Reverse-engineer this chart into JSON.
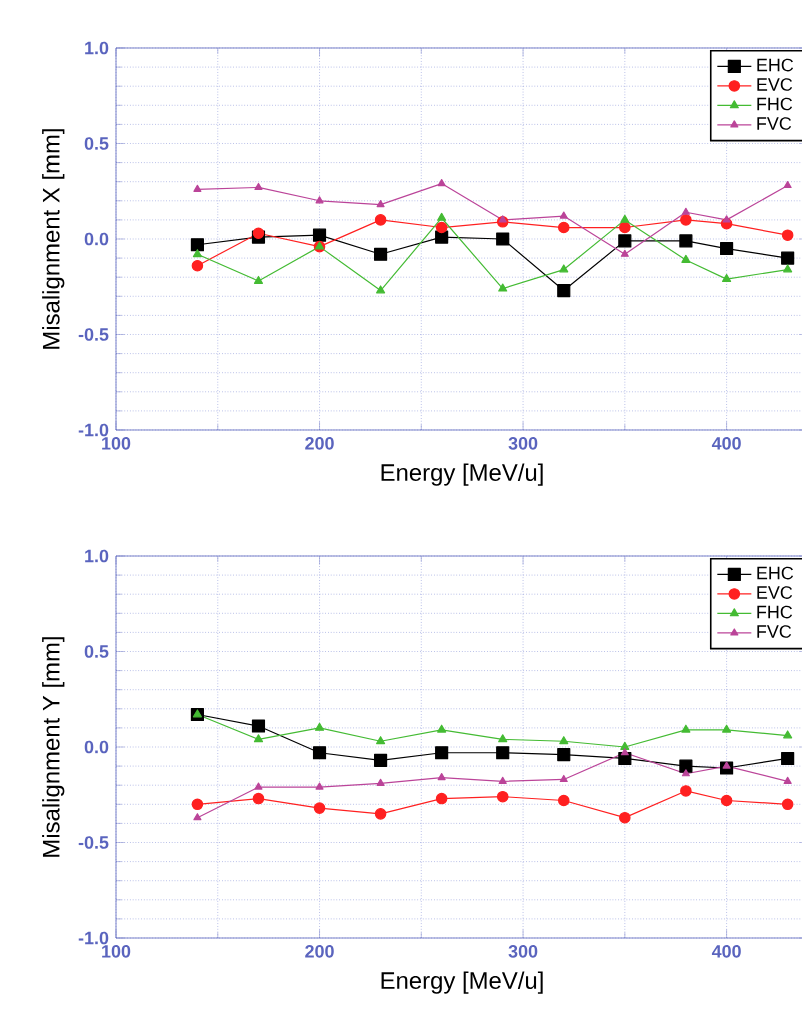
{
  "chart_data": [
    {
      "type": "line",
      "xlabel": "Energy [MeV/u]",
      "ylabel": "Misalignment X [mm]",
      "x": [
        140,
        170,
        200,
        230,
        260,
        290,
        320,
        350,
        380,
        400,
        430
      ],
      "xlim": [
        100,
        440
      ],
      "xticks": [
        100,
        200,
        300,
        400
      ],
      "ylim": [
        -1.0,
        1.0
      ],
      "yticks": [
        {
          "value": -1.0,
          "label": "-1.0"
        },
        {
          "value": -0.5,
          "label": "-0.5"
        },
        {
          "value": 0,
          "label": "0.0"
        },
        {
          "value": 0.5,
          "label": "0.5"
        },
        {
          "value": 1.0,
          "label": "1.0"
        }
      ],
      "grid": true,
      "legend": "top right",
      "line_style": "solid",
      "series": [
        {
          "name": "EHC",
          "color": "#000000",
          "marker": "square",
          "values": [
            -0.03,
            0.01,
            0.02,
            -0.08,
            0.01,
            0.0,
            -0.27,
            -0.01,
            -0.01,
            -0.05,
            -0.1
          ]
        },
        {
          "name": "EVC",
          "color": "#ff2020",
          "marker": "circle",
          "values": [
            -0.14,
            0.03,
            -0.04,
            0.1,
            0.06,
            0.09,
            0.06,
            0.06,
            0.1,
            0.08,
            0.02
          ]
        },
        {
          "name": "FHC",
          "color": "#44bb33",
          "marker": "triangle",
          "values": [
            -0.08,
            -0.22,
            -0.04,
            -0.27,
            0.11,
            -0.26,
            -0.16,
            0.1,
            -0.11,
            -0.21,
            -0.16
          ]
        },
        {
          "name": "FVC",
          "color": "#bb4499",
          "marker": "triangle-down",
          "values": [
            0.26,
            0.27,
            0.2,
            0.18,
            0.29,
            0.1,
            0.12,
            -0.08,
            0.14,
            0.1,
            0.28
          ]
        }
      ]
    },
    {
      "type": "line",
      "xlabel": "Energy [MeV/u]",
      "ylabel": "Misalignment Y [mm]",
      "x": [
        140,
        170,
        200,
        230,
        260,
        290,
        320,
        350,
        380,
        400,
        430
      ],
      "xlim": [
        100,
        440
      ],
      "xticks": [
        100,
        200,
        300,
        400
      ],
      "ylim": [
        -1.0,
        1.0
      ],
      "yticks": [
        {
          "value": -1.0,
          "label": "-1.0"
        },
        {
          "value": -0.5,
          "label": "-0.5"
        },
        {
          "value": 0,
          "label": "0.0"
        },
        {
          "value": 0.5,
          "label": "0.5"
        },
        {
          "value": 1.0,
          "label": "1.0"
        }
      ],
      "grid": true,
      "legend": "top right",
      "line_style": "solid",
      "series": [
        {
          "name": "EHC",
          "color": "#000000",
          "marker": "square",
          "values": [
            0.17,
            0.11,
            -0.03,
            -0.07,
            -0.03,
            -0.03,
            -0.04,
            -0.06,
            -0.1,
            -0.11,
            -0.06
          ]
        },
        {
          "name": "EVC",
          "color": "#ff2020",
          "marker": "circle",
          "values": [
            -0.3,
            -0.27,
            -0.32,
            -0.35,
            -0.27,
            -0.26,
            -0.28,
            -0.37,
            -0.23,
            -0.28,
            -0.3
          ]
        },
        {
          "name": "FHC",
          "color": "#44bb33",
          "marker": "triangle",
          "values": [
            0.17,
            0.04,
            0.1,
            0.03,
            0.09,
            0.04,
            0.03,
            0.0,
            0.09,
            0.09,
            0.06
          ]
        },
        {
          "name": "FVC",
          "color": "#bb4499",
          "marker": "triangle-down",
          "values": [
            -0.37,
            -0.21,
            -0.21,
            -0.19,
            -0.16,
            -0.18,
            -0.17,
            -0.03,
            -0.14,
            -0.1,
            -0.18
          ]
        }
      ]
    }
  ]
}
